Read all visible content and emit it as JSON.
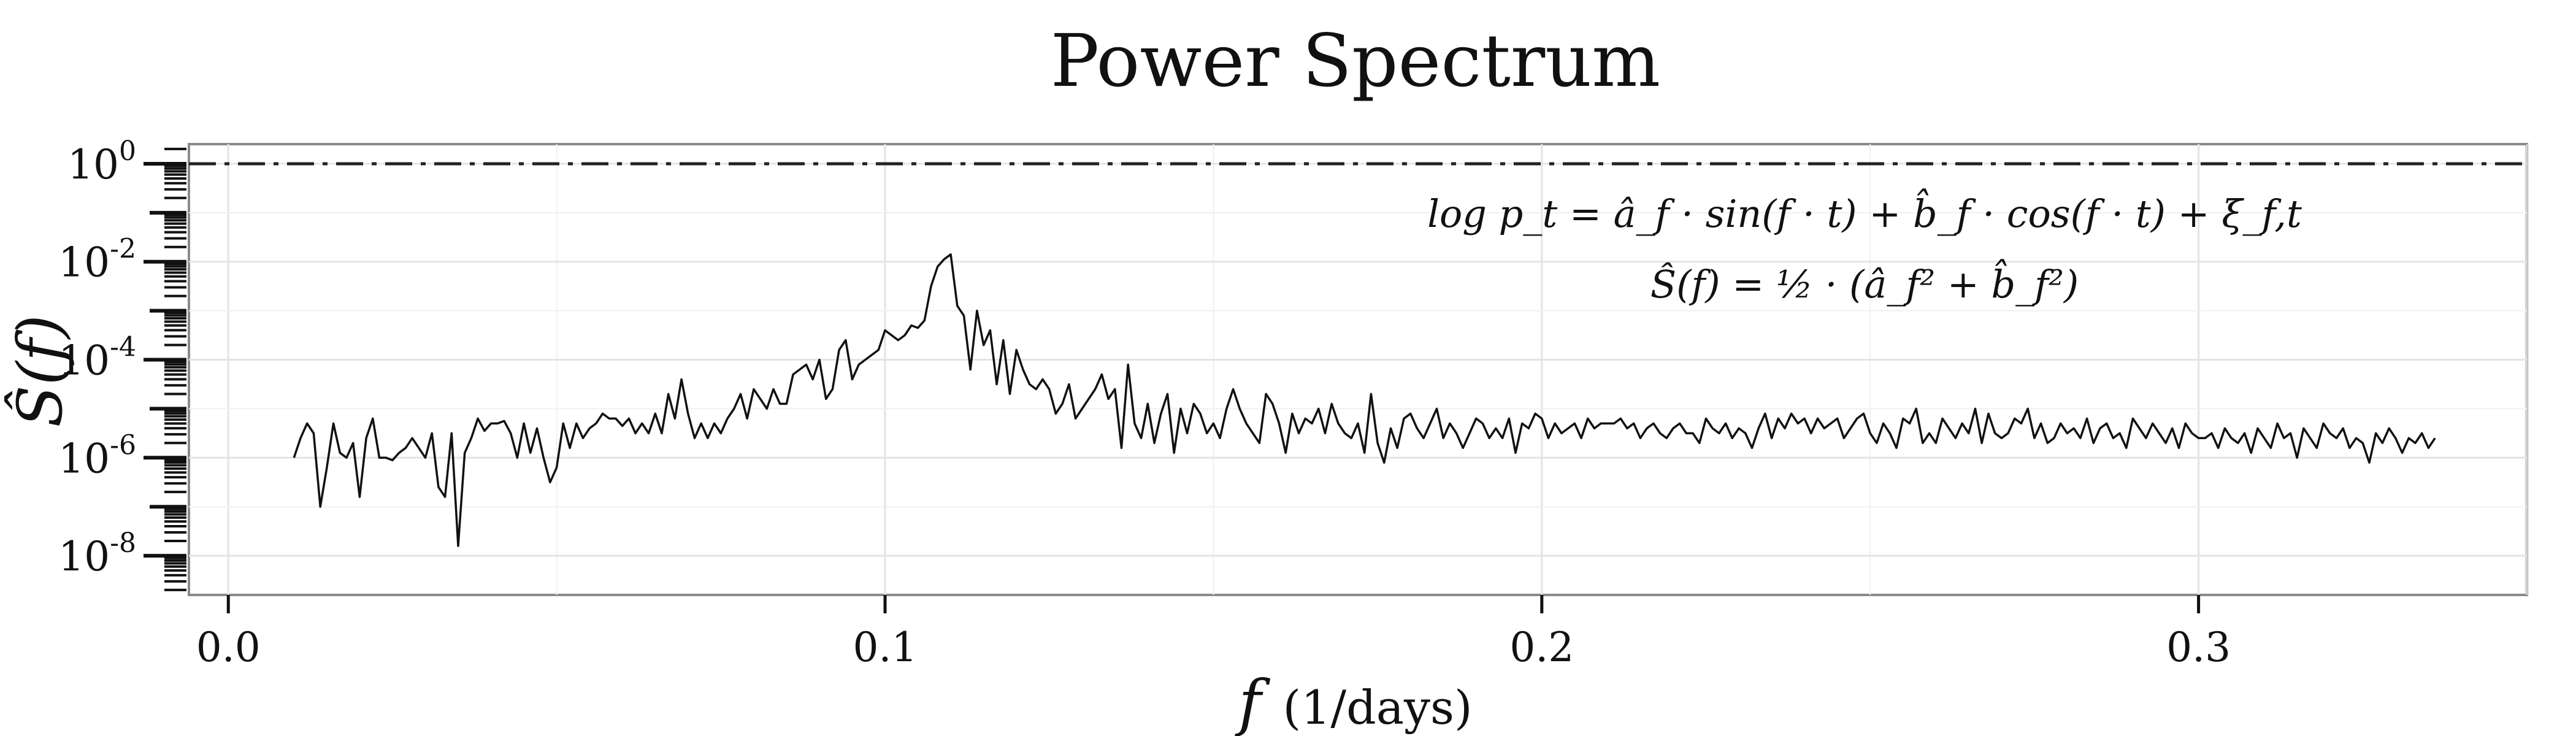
{
  "chart_data": {
    "type": "line",
    "title": "Power Spectrum",
    "xlabel_symbol": "f",
    "xlabel_unit": "(1/days)",
    "ylabel": "Ŝ(f)",
    "y_scale": "log10",
    "xlim": [
      -0.006,
      0.35
    ],
    "ylim_log10": [
      -8.8,
      0.4
    ],
    "x_ticks": [
      {
        "value": 0.0,
        "label": "0.0"
      },
      {
        "value": 0.1,
        "label": "0.1"
      },
      {
        "value": 0.2,
        "label": "0.2"
      },
      {
        "value": 0.3,
        "label": "0.3"
      }
    ],
    "y_ticks": [
      {
        "exp": 0,
        "base": "10",
        "sup": "0"
      },
      {
        "exp": -2,
        "base": "10",
        "sup": "-2"
      },
      {
        "exp": -4,
        "base": "10",
        "sup": "-4"
      },
      {
        "exp": -6,
        "base": "10",
        "sup": "-6"
      },
      {
        "exp": -8,
        "base": "10",
        "sup": "-8"
      }
    ],
    "reference_line": {
      "y": 1,
      "style": "dash-dot"
    },
    "annotations": [
      "log p_t = â_f · sin(f · t) + b̂_f · cos(f · t) + ξ_f,t",
      "Ŝ(f) = ½ · (â_f² + b̂_f²)"
    ],
    "grid": true,
    "series": [
      {
        "x_start": 0.01,
        "x_step": 0.001,
        "log10_values": [
          -6.0,
          -5.6,
          -5.3,
          -5.5,
          -7.0,
          -6.2,
          -5.3,
          -5.9,
          -6.0,
          -5.7,
          -6.8,
          -5.6,
          -5.2,
          -6.0,
          -6.0,
          -6.05,
          -5.9,
          -5.8,
          -5.6,
          -5.8,
          -6.0,
          -5.5,
          -6.6,
          -6.8,
          -5.5,
          -7.8,
          -5.9,
          -5.6,
          -5.2,
          -5.45,
          -5.3,
          -5.3,
          -5.25,
          -5.5,
          -6.0,
          -5.3,
          -5.9,
          -5.4,
          -6.0,
          -6.5,
          -6.2,
          -5.3,
          -5.8,
          -5.3,
          -5.6,
          -5.4,
          -5.3,
          -5.1,
          -5.2,
          -5.2,
          -5.35,
          -5.2,
          -5.5,
          -5.3,
          -5.5,
          -5.1,
          -5.5,
          -4.7,
          -5.2,
          -4.4,
          -5.1,
          -5.6,
          -5.3,
          -5.6,
          -5.3,
          -5.5,
          -5.2,
          -5.0,
          -4.7,
          -5.2,
          -4.6,
          -4.8,
          -5.0,
          -4.6,
          -4.9,
          -4.9,
          -4.3,
          -4.2,
          -4.1,
          -4.4,
          -4.0,
          -4.8,
          -4.6,
          -3.8,
          -3.6,
          -4.4,
          -4.1,
          -4.0,
          -3.9,
          -3.8,
          -3.4,
          -3.5,
          -3.6,
          -3.5,
          -3.3,
          -3.35,
          -3.2,
          -2.5,
          -2.1,
          -1.95,
          -1.85,
          -2.9,
          -3.1,
          -4.2,
          -3.0,
          -3.7,
          -3.4,
          -4.5,
          -3.6,
          -4.7,
          -3.8,
          -4.2,
          -4.5,
          -4.6,
          -4.4,
          -4.6,
          -5.1,
          -4.9,
          -4.5,
          -5.2,
          -5.0,
          -4.8,
          -4.6,
          -4.3,
          -4.8,
          -4.6,
          -5.8,
          -4.1,
          -5.3,
          -5.6,
          -4.9,
          -5.7,
          -5.1,
          -4.7,
          -5.9,
          -5.0,
          -5.5,
          -4.9,
          -5.1,
          -5.5,
          -5.3,
          -5.6,
          -5.0,
          -4.6,
          -5.0,
          -5.3,
          -5.5,
          -5.7,
          -4.7,
          -4.9,
          -5.3,
          -5.9,
          -5.1,
          -5.5,
          -5.2,
          -5.3,
          -5.0,
          -5.5,
          -4.9,
          -5.3,
          -5.5,
          -5.6,
          -5.3,
          -5.9,
          -4.7,
          -5.7,
          -6.1,
          -5.4,
          -5.8,
          -5.2,
          -5.1,
          -5.4,
          -5.6,
          -5.3,
          -5.0,
          -5.6,
          -5.3,
          -5.5,
          -5.8,
          -5.5,
          -5.2,
          -5.3,
          -5.6,
          -5.4,
          -5.6,
          -5.2,
          -5.9,
          -5.3,
          -5.4,
          -5.1,
          -5.2,
          -5.6,
          -5.3,
          -5.5,
          -5.4,
          -5.3,
          -5.6,
          -5.2,
          -5.4,
          -5.3,
          -5.3,
          -5.3,
          -5.2,
          -5.4,
          -5.3,
          -5.6,
          -5.4,
          -5.3,
          -5.5,
          -5.6,
          -5.4,
          -5.3,
          -5.5,
          -5.5,
          -5.7,
          -5.2,
          -5.4,
          -5.5,
          -5.3,
          -5.6,
          -5.4,
          -5.5,
          -5.8,
          -5.4,
          -5.1,
          -5.6,
          -5.2,
          -5.4,
          -5.1,
          -5.3,
          -5.2,
          -5.5,
          -5.2,
          -5.4,
          -5.3,
          -5.2,
          -5.6,
          -5.4,
          -5.2,
          -5.1,
          -5.5,
          -5.7,
          -5.3,
          -5.5,
          -5.8,
          -5.2,
          -5.3,
          -5.0,
          -5.7,
          -5.5,
          -5.7,
          -5.2,
          -5.4,
          -5.6,
          -5.3,
          -5.5,
          -5.0,
          -5.7,
          -5.1,
          -5.5,
          -5.6,
          -5.5,
          -5.2,
          -5.3,
          -5.0,
          -5.6,
          -5.3,
          -5.7,
          -5.6,
          -5.3,
          -5.5,
          -5.4,
          -5.6,
          -5.2,
          -5.7,
          -5.4,
          -5.3,
          -5.6,
          -5.5,
          -5.8,
          -5.2,
          -5.4,
          -5.6,
          -5.3,
          -5.5,
          -5.7,
          -5.4,
          -5.8,
          -5.3,
          -5.5,
          -5.6,
          -5.6,
          -5.5,
          -5.8,
          -5.4,
          -5.6,
          -5.7,
          -5.5,
          -5.9,
          -5.4,
          -5.6,
          -5.8,
          -5.3,
          -5.6,
          -5.5,
          -6.0,
          -5.4,
          -5.6,
          -5.8,
          -5.3,
          -5.5,
          -5.6,
          -5.4,
          -5.8,
          -5.6,
          -5.7,
          -6.1,
          -5.5,
          -5.7,
          -5.4,
          -5.6,
          -5.9,
          -5.6,
          -5.7,
          -5.5,
          -5.8,
          -5.6
        ]
      }
    ]
  }
}
